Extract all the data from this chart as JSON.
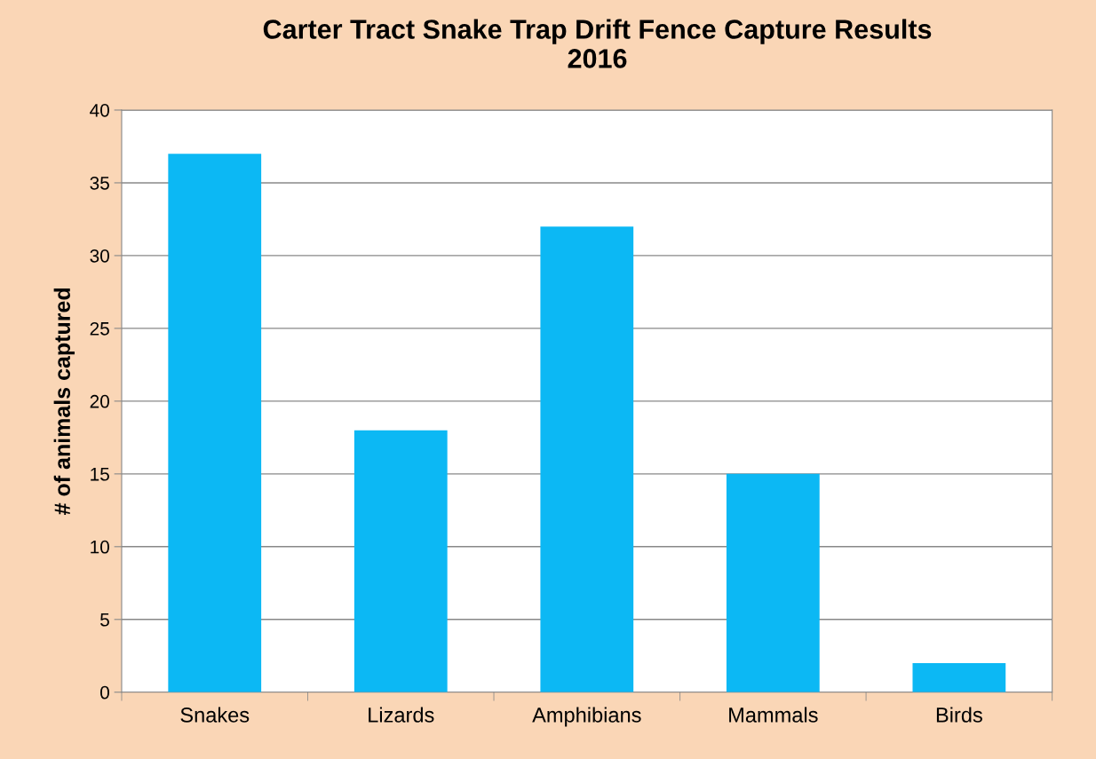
{
  "chart_data": {
    "type": "bar",
    "title": "Carter Tract Snake Trap Drift Fence Capture Results\n2016",
    "ylabel": "# of animals captured",
    "categories": [
      "Snakes",
      "Lizards",
      "Amphibians",
      "Mammals",
      "Birds"
    ],
    "values": [
      37,
      18,
      32,
      15,
      2
    ],
    "color": "#0cb8f4",
    "ylim": [
      0,
      40
    ],
    "yticks": [
      0,
      5,
      10,
      15,
      20,
      25,
      30,
      35,
      40
    ],
    "grid": "y",
    "legend": false
  }
}
